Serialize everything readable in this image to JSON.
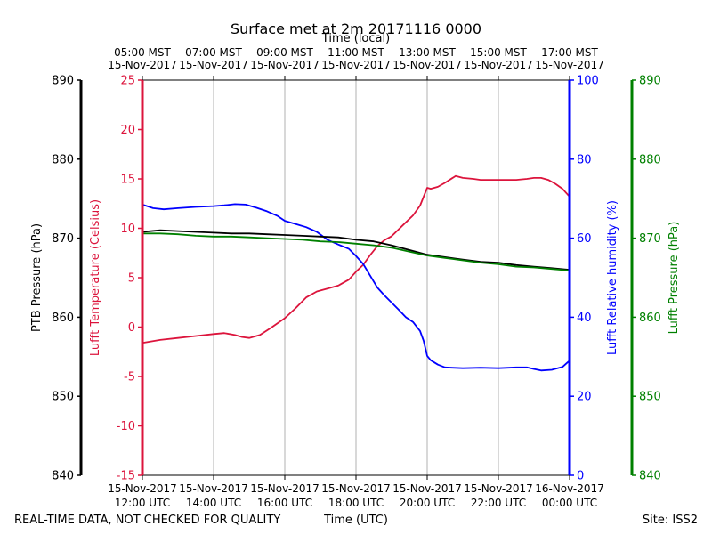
{
  "chart_data": {
    "type": "line",
    "title": "Surface met at 2m 20171116 0000",
    "top_axis_title": "Time (local)",
    "xlabel": "Time (UTC)",
    "footer_left": "REAL-TIME DATA, NOT CHECKED FOR QUALITY",
    "footer_right": "Site: ISS2",
    "x_range_hours": [
      12,
      24
    ],
    "x_ticks_utc": [
      {
        "h": 12,
        "line1": "15-Nov-2017",
        "line2": "12:00 UTC"
      },
      {
        "h": 14,
        "line1": "15-Nov-2017",
        "line2": "14:00 UTC"
      },
      {
        "h": 16,
        "line1": "15-Nov-2017",
        "line2": "16:00 UTC"
      },
      {
        "h": 18,
        "line1": "15-Nov-2017",
        "line2": "18:00 UTC"
      },
      {
        "h": 20,
        "line1": "15-Nov-2017",
        "line2": "20:00 UTC"
      },
      {
        "h": 22,
        "line1": "15-Nov-2017",
        "line2": "22:00 UTC"
      },
      {
        "h": 24,
        "line1": "16-Nov-2017",
        "line2": "00:00 UTC"
      }
    ],
    "x_ticks_local": [
      {
        "h": 12,
        "line1": "05:00 MST",
        "line2": "15-Nov-2017"
      },
      {
        "h": 14,
        "line1": "07:00 MST",
        "line2": "15-Nov-2017"
      },
      {
        "h": 16,
        "line1": "09:00 MST",
        "line2": "15-Nov-2017"
      },
      {
        "h": 18,
        "line1": "11:00 MST",
        "line2": "15-Nov-2017"
      },
      {
        "h": 20,
        "line1": "13:00 MST",
        "line2": "15-Nov-2017"
      },
      {
        "h": 22,
        "line1": "15:00 MST",
        "line2": "15-Nov-2017"
      },
      {
        "h": 24,
        "line1": "17:00 MST",
        "line2": "15-Nov-2017"
      }
    ],
    "axes": [
      {
        "id": "ptb",
        "label": "PTB Pressure (hPa)",
        "range": [
          840,
          890
        ],
        "ticks": [
          840,
          850,
          860,
          870,
          880,
          890
        ],
        "color": "#000000"
      },
      {
        "id": "temp",
        "label": "Lufft Temperature (Celsius)",
        "range": [
          -15,
          25
        ],
        "ticks": [
          -15,
          -10,
          -5,
          0,
          5,
          10,
          15,
          20,
          25
        ],
        "color": "#dc143c"
      },
      {
        "id": "rh",
        "label": "Lufft Relative humidity (%)",
        "range": [
          0,
          100
        ],
        "ticks": [
          0,
          20,
          40,
          60,
          80,
          100
        ],
        "color": "#0000ff"
      },
      {
        "id": "lufftp",
        "label": "Lufft Pressure (hPa)",
        "range": [
          840,
          890
        ],
        "ticks": [
          840,
          850,
          860,
          870,
          880,
          890
        ],
        "color": "#008000"
      }
    ],
    "series": [
      {
        "name": "Lufft Temperature",
        "axis": "temp",
        "color": "#dc143c",
        "x": [
          12.0,
          12.5,
          13.0,
          13.5,
          14.0,
          14.3,
          14.6,
          14.8,
          15.0,
          15.3,
          15.6,
          16.0,
          16.3,
          16.6,
          16.9,
          17.2,
          17.5,
          17.8,
          18.0,
          18.2,
          18.4,
          18.6,
          18.8,
          19.0,
          19.2,
          19.4,
          19.6,
          19.8,
          19.9,
          20.0,
          20.1,
          20.3,
          20.5,
          20.8,
          21.0,
          21.3,
          21.5,
          22.0,
          22.5,
          22.8,
          23.0,
          23.2,
          23.4,
          23.6,
          23.8,
          24.0
        ],
        "values": [
          -1.6,
          -1.3,
          -1.1,
          -0.9,
          -0.7,
          -0.6,
          -0.8,
          -1.0,
          -1.1,
          -0.8,
          -0.1,
          0.9,
          1.9,
          3.0,
          3.6,
          3.9,
          4.2,
          4.8,
          5.6,
          6.3,
          7.3,
          8.2,
          8.8,
          9.2,
          9.9,
          10.6,
          11.3,
          12.3,
          13.2,
          14.1,
          14.0,
          14.2,
          14.6,
          15.3,
          15.1,
          15.0,
          14.9,
          14.9,
          14.9,
          15.0,
          15.1,
          15.1,
          14.9,
          14.5,
          14.0,
          13.2
        ]
      },
      {
        "name": "Lufft Relative humidity",
        "axis": "rh",
        "color": "#0000ff",
        "x": [
          12.0,
          12.3,
          12.6,
          13.0,
          13.5,
          14.0,
          14.3,
          14.6,
          14.9,
          15.2,
          15.5,
          15.8,
          16.0,
          16.3,
          16.6,
          16.9,
          17.2,
          17.5,
          17.8,
          18.0,
          18.2,
          18.4,
          18.6,
          18.8,
          19.0,
          19.2,
          19.4,
          19.6,
          19.8,
          19.9,
          20.0,
          20.1,
          20.3,
          20.5,
          20.7,
          21.0,
          21.5,
          22.0,
          22.5,
          22.8,
          23.0,
          23.2,
          23.5,
          23.8,
          24.0
        ],
        "values": [
          68.5,
          67.6,
          67.3,
          67.6,
          67.9,
          68.1,
          68.3,
          68.6,
          68.5,
          67.7,
          66.8,
          65.6,
          64.4,
          63.6,
          62.8,
          61.6,
          59.6,
          58.4,
          57.3,
          55.5,
          53.5,
          50.5,
          47.5,
          45.5,
          43.7,
          41.9,
          40.0,
          38.8,
          36.5,
          34.0,
          30.2,
          29.1,
          28.0,
          27.3,
          27.2,
          27.1,
          27.2,
          27.1,
          27.3,
          27.3,
          26.9,
          26.5,
          26.7,
          27.4,
          29.0
        ]
      },
      {
        "name": "PTB Pressure",
        "axis": "ptb",
        "color": "#000000",
        "x": [
          12.0,
          12.5,
          13.0,
          13.5,
          14.0,
          14.5,
          15.0,
          15.5,
          16.0,
          16.5,
          17.0,
          17.5,
          18.0,
          18.5,
          19.0,
          19.5,
          20.0,
          20.5,
          21.0,
          21.5,
          22.0,
          22.5,
          23.0,
          23.5,
          24.0
        ],
        "values": [
          870.8,
          871.0,
          870.9,
          870.8,
          870.7,
          870.6,
          870.6,
          870.5,
          870.4,
          870.3,
          870.2,
          870.1,
          869.8,
          869.6,
          869.1,
          868.5,
          867.9,
          867.6,
          867.3,
          867.0,
          866.9,
          866.6,
          866.4,
          866.2,
          866.0
        ]
      },
      {
        "name": "Lufft Pressure",
        "axis": "lufftp",
        "color": "#008000",
        "x": [
          12.0,
          12.5,
          13.0,
          13.5,
          14.0,
          14.5,
          15.0,
          15.5,
          16.0,
          16.5,
          17.0,
          17.5,
          18.0,
          18.5,
          19.0,
          19.5,
          20.0,
          20.5,
          21.0,
          21.5,
          22.0,
          22.5,
          23.0,
          23.5,
          24.0
        ],
        "values": [
          870.6,
          870.6,
          870.5,
          870.3,
          870.2,
          870.2,
          870.1,
          870.0,
          869.9,
          869.8,
          869.6,
          869.5,
          869.3,
          869.1,
          868.8,
          868.3,
          867.8,
          867.5,
          867.2,
          866.9,
          866.7,
          866.4,
          866.3,
          866.1,
          865.9
        ]
      }
    ]
  }
}
